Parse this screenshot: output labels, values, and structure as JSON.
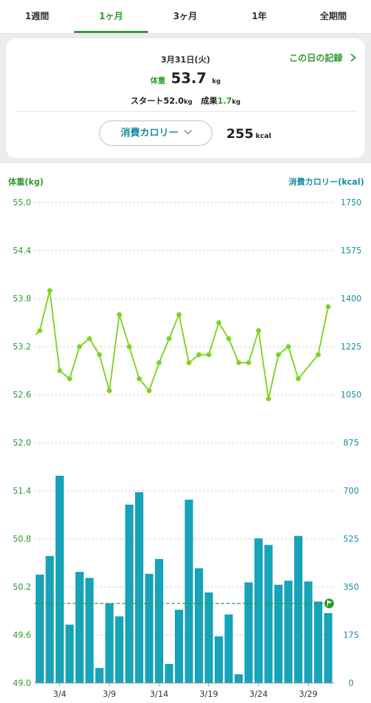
{
  "tabs": [
    "1週間",
    "1ヶ月",
    "3ヶ月",
    "1年",
    "全期間"
  ],
  "active_tab": 1,
  "summary": {
    "date": "3月31日(火)",
    "record_link": "この日の記録",
    "weight_label": "体重",
    "weight_value": "53.7",
    "weight_unit": "kg",
    "start_label": "スタート",
    "start_value": "52.0",
    "start_unit": "kg",
    "result_label": "成果",
    "result_value": "1.7",
    "result_unit": "kg",
    "metric_select": "消費カロリー",
    "metric_value": "255",
    "metric_unit": "kcal"
  },
  "colors": {
    "weight_line": "#7ed321",
    "calorie_bar": "#17a3b8",
    "target_line": "#2f9a2f",
    "weight_axis": "#2f9a2f",
    "calorie_axis": "#1a8ca3"
  },
  "chart_data": {
    "type": "bar+line",
    "left_axis_label": "体重(kg)",
    "right_axis_label": "消費カロリー(kcal)",
    "left_ticks": [
      "55.0",
      "54.4",
      "53.8",
      "53.2",
      "52.6",
      "52.0",
      "51.4",
      "50.8",
      "50.2",
      "49.6",
      "49.0"
    ],
    "right_ticks": [
      "1750",
      "1575",
      "1400",
      "1225",
      "1050",
      "875",
      "700",
      "525",
      "350",
      "175",
      "0"
    ],
    "left_range": [
      49.0,
      55.0
    ],
    "right_range": [
      0,
      1750
    ],
    "x_labels": [
      "3/4",
      "3/9",
      "3/14",
      "3/19",
      "3/24",
      "3/29"
    ],
    "x_label_days": [
      4,
      9,
      14,
      19,
      24,
      29
    ],
    "days": [
      2,
      3,
      4,
      5,
      6,
      7,
      8,
      9,
      10,
      11,
      12,
      13,
      14,
      15,
      16,
      17,
      18,
      19,
      20,
      21,
      22,
      23,
      24,
      25,
      26,
      27,
      28,
      29,
      30,
      31
    ],
    "weight_series": {
      "name": "体重",
      "days": [
        1.6,
        2,
        3,
        4,
        5,
        6,
        7,
        8,
        9,
        10,
        11,
        12,
        13,
        14,
        15,
        16,
        17,
        18,
        19,
        20,
        21,
        22,
        23,
        24,
        25,
        26,
        27,
        28,
        30,
        31
      ],
      "values": [
        53.35,
        53.4,
        53.9,
        52.9,
        52.8,
        53.2,
        53.3,
        53.1,
        52.65,
        53.6,
        53.2,
        52.8,
        52.65,
        53.0,
        53.3,
        53.6,
        53.0,
        53.1,
        53.1,
        53.5,
        53.3,
        53.0,
        53.0,
        53.4,
        52.55,
        53.1,
        53.2,
        52.8,
        53.1,
        53.7
      ]
    },
    "calorie_series": {
      "name": "消費カロリー",
      "values": [
        395,
        463,
        755,
        213,
        405,
        383,
        55,
        290,
        243,
        650,
        695,
        398,
        452,
        70,
        267,
        668,
        418,
        330,
        170,
        250,
        32,
        367,
        527,
        503,
        358,
        373,
        536,
        370,
        297,
        255
      ]
    },
    "target_calorie": 290
  }
}
